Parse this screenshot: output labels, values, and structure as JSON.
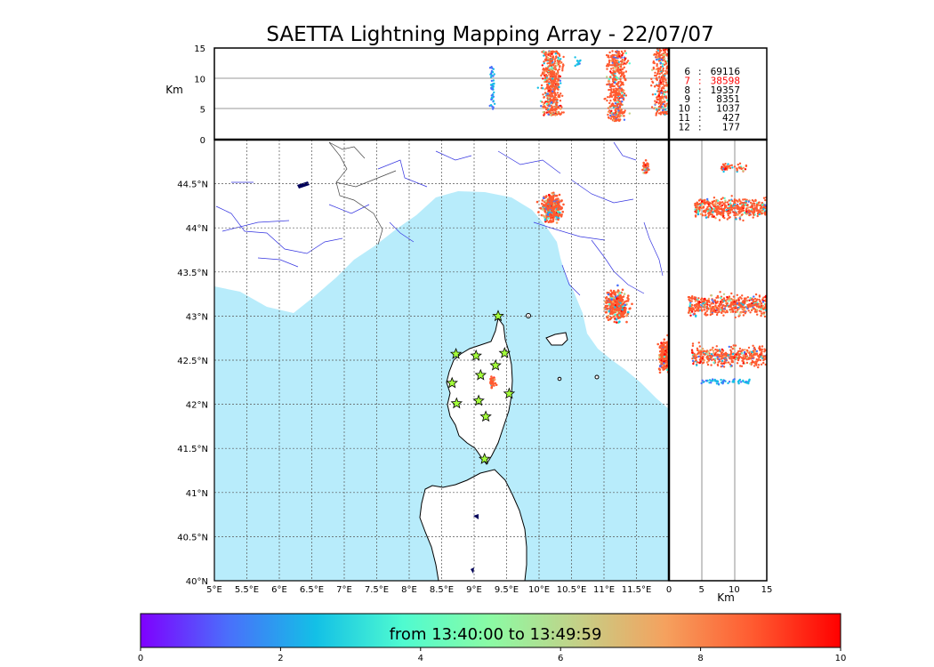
{
  "chart_data": {
    "type": "scatter",
    "title": "SAETTA Lightning Mapping Array - 22/07/07",
    "map": {
      "lon_range": [
        5,
        12
      ],
      "lat_range": [
        40,
        45
      ],
      "x_ticks": [
        "5°E",
        "5.5°E",
        "6°E",
        "6.5°E",
        "7°E",
        "7.5°E",
        "8°E",
        "8.5°E",
        "9°E",
        "9.5°E",
        "10°E",
        "10.5°E",
        "11°E",
        "11.5°E"
      ],
      "y_ticks": [
        "40°N",
        "40.5°N",
        "41°N",
        "41.5°N",
        "42°N",
        "42.5°N",
        "43°N",
        "43.5°N",
        "44°N",
        "44.5°N"
      ],
      "grid": true,
      "sea_color": "#b8ecfb",
      "station_color": "#a4ff3a",
      "stations": [
        {
          "lon": 9.37,
          "lat": 43.0
        },
        {
          "lon": 8.72,
          "lat": 42.57
        },
        {
          "lon": 9.03,
          "lat": 42.55
        },
        {
          "lon": 9.47,
          "lat": 42.58
        },
        {
          "lon": 9.33,
          "lat": 42.44
        },
        {
          "lon": 9.1,
          "lat": 42.33
        },
        {
          "lon": 8.66,
          "lat": 42.24
        },
        {
          "lon": 9.54,
          "lat": 42.12
        },
        {
          "lon": 8.73,
          "lat": 42.01
        },
        {
          "lon": 9.07,
          "lat": 42.04
        },
        {
          "lon": 9.18,
          "lat": 41.86
        },
        {
          "lon": 9.16,
          "lat": 41.38
        }
      ],
      "clusters": [
        {
          "lon": 10.2,
          "lat": 44.22,
          "spread_lon": 0.12,
          "spread_lat": 0.12,
          "density": 380
        },
        {
          "lon": 11.2,
          "lat": 43.12,
          "spread_lon": 0.14,
          "spread_lat": 0.13,
          "density": 340
        },
        {
          "lon": 11.95,
          "lat": 42.55,
          "spread_lon": 0.08,
          "spread_lat": 0.13,
          "density": 260
        },
        {
          "lon": 11.65,
          "lat": 44.68,
          "spread_lon": 0.04,
          "spread_lat": 0.05,
          "density": 50
        },
        {
          "lon": 9.28,
          "lat": 42.25,
          "spread_lon": 0.04,
          "spread_lat": 0.05,
          "density": 40
        }
      ]
    },
    "altitude_top": {
      "ylabel": "Km",
      "y_ticks": [
        "0",
        "5",
        "10",
        "15"
      ],
      "ylim": [
        0,
        15
      ],
      "x_ticks": [],
      "columns": [
        {
          "lon": 9.28,
          "alt_range": [
            5,
            12
          ],
          "density": 50
        },
        {
          "lon": 10.2,
          "alt_range": [
            4,
            14.5
          ],
          "density": 500
        },
        {
          "lon": 11.2,
          "alt_range": [
            3,
            14.5
          ],
          "density": 460
        },
        {
          "lon": 11.9,
          "alt_range": [
            4,
            15
          ],
          "density": 320
        },
        {
          "lon": 10.6,
          "alt_range": [
            12,
            13.5
          ],
          "density": 12
        }
      ]
    },
    "altitude_right": {
      "xlabel": "Km",
      "x_ticks": [
        "0",
        "5",
        "10",
        "15"
      ],
      "xlim": [
        0,
        15
      ],
      "bands": [
        {
          "lat": 44.22,
          "alt_range": [
            4,
            15
          ],
          "density": 520
        },
        {
          "lat": 43.12,
          "alt_range": [
            3,
            15
          ],
          "density": 520
        },
        {
          "lat": 42.55,
          "alt_range": [
            3.5,
            15
          ],
          "density": 420
        },
        {
          "lat": 42.26,
          "alt_range": [
            5,
            12.5
          ],
          "density": 60
        },
        {
          "lat": 44.68,
          "alt_range": [
            8,
            12
          ],
          "density": 50
        }
      ]
    },
    "stats": [
      {
        "n": "6",
        "count": "69116",
        "highlight": false
      },
      {
        "n": "7",
        "count": "38598",
        "highlight": true
      },
      {
        "n": "8",
        "count": "19357",
        "highlight": false
      },
      {
        "n": "9",
        "count": "8351",
        "highlight": false
      },
      {
        "n": "10",
        "count": "1037",
        "highlight": false
      },
      {
        "n": "11",
        "count": "427",
        "highlight": false
      },
      {
        "n": "12",
        "count": "177",
        "highlight": false
      }
    ],
    "colorbar": {
      "label": "from 13:40:00 to 13:49:59",
      "ticks": [
        "0",
        "2",
        "4",
        "6",
        "8",
        "10"
      ],
      "range": [
        0,
        10
      ],
      "colormap": "rainbow",
      "colors": [
        "#7f00ff",
        "#4a6ffb",
        "#13c0e6",
        "#4ffbd0",
        "#8bfba4",
        "#c4d087",
        "#f5a15e",
        "#ff5a30",
        "#ff0000"
      ]
    }
  }
}
